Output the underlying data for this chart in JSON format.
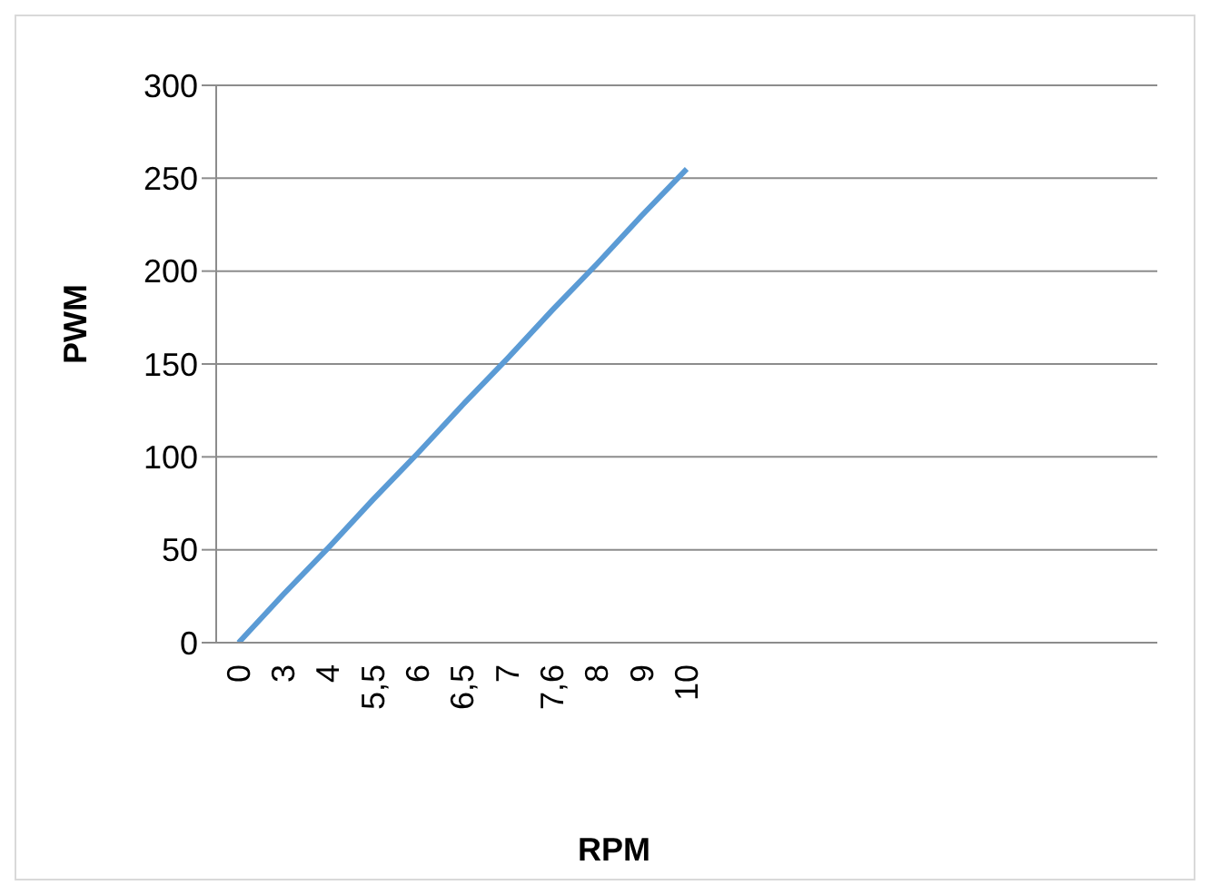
{
  "chart_data": {
    "type": "line",
    "xlabel": "RPM",
    "ylabel": "PWM",
    "categories": [
      "0",
      "3",
      "4",
      "5,5",
      "6",
      "6,5",
      "7",
      "7,6",
      "8",
      "9",
      "10",
      null,
      null,
      null,
      null,
      null,
      null,
      null,
      null,
      null,
      null
    ],
    "series": [
      {
        "color": "#5b9bd5",
        "values": [
          0,
          26,
          51,
          77,
          102,
          128,
          153,
          179,
          204,
          230,
          255,
          null,
          null,
          null,
          null,
          null,
          null,
          null,
          null,
          null,
          null
        ]
      }
    ],
    "ylim": [
      0,
      300
    ],
    "yticks": [
      0,
      50,
      100,
      150,
      200,
      250,
      300
    ],
    "grid": "y",
    "legend": false,
    "marker": "none"
  }
}
